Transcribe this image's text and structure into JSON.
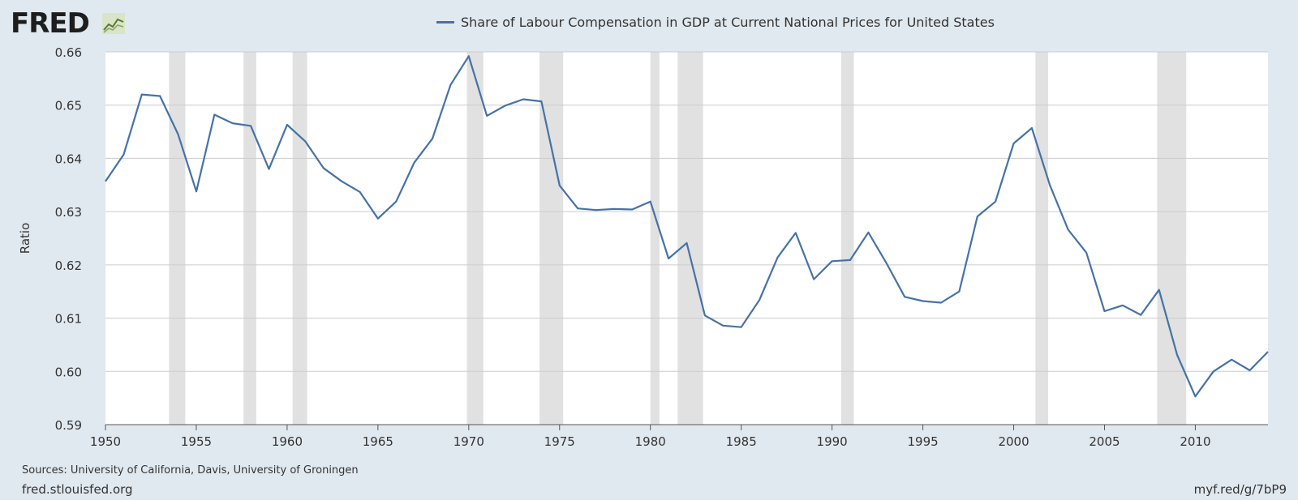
{
  "header": {
    "logo_text": "FRED",
    "series_title": "Share of Labour Compensation in GDP at Current National Prices for United States"
  },
  "colors": {
    "line": "#4572a7",
    "recession": "#e1e1e1",
    "grid": "#cccccc",
    "plot_bg": "#ffffff",
    "page_bg": "#e1e9f0"
  },
  "footer": {
    "sources": "Sources: University of California, Davis, University of Groningen",
    "site": "fred.stlouisfed.org",
    "short_url": "myf.red/g/7bP9"
  },
  "chart_data": {
    "type": "line",
    "title": "Share of Labour Compensation in GDP at Current National Prices for United States",
    "xlabel": "",
    "ylabel": "Ratio",
    "xlim": [
      1950,
      2014
    ],
    "ylim": [
      0.59,
      0.66
    ],
    "x_ticks": [
      1950,
      1955,
      1960,
      1965,
      1970,
      1975,
      1980,
      1985,
      1990,
      1995,
      2000,
      2005,
      2010
    ],
    "y_ticks": [
      "0.59",
      "0.60",
      "0.61",
      "0.62",
      "0.63",
      "0.64",
      "0.65",
      "0.66"
    ],
    "grid": true,
    "legend_position": "top-center",
    "recessions": [
      [
        1953.5,
        1954.4
      ],
      [
        1957.6,
        1958.3
      ],
      [
        1960.3,
        1961.1
      ],
      [
        1969.9,
        1970.8
      ],
      [
        1973.9,
        1975.2
      ],
      [
        1980.0,
        1980.5
      ],
      [
        1981.5,
        1982.9
      ],
      [
        1990.5,
        1991.2
      ],
      [
        2001.2,
        2001.9
      ],
      [
        2007.9,
        2009.5
      ]
    ],
    "series": [
      {
        "name": "Share of Labour Compensation in GDP at Current National Prices for United States",
        "x": [
          1950,
          1951,
          1952,
          1953,
          1954,
          1955,
          1956,
          1957,
          1958,
          1959,
          1960,
          1961,
          1962,
          1963,
          1964,
          1965,
          1966,
          1967,
          1968,
          1969,
          1970,
          1971,
          1972,
          1973,
          1974,
          1975,
          1976,
          1977,
          1978,
          1979,
          1980,
          1981,
          1982,
          1983,
          1984,
          1985,
          1986,
          1987,
          1988,
          1989,
          1990,
          1991,
          1992,
          1993,
          1994,
          1995,
          1996,
          1997,
          1998,
          1999,
          2000,
          2001,
          2002,
          2003,
          2004,
          2005,
          2006,
          2007,
          2008,
          2009,
          2010,
          2011,
          2012,
          2013,
          2014
        ],
        "values": [
          0.6357,
          0.6407,
          0.652,
          0.6517,
          0.6445,
          0.6338,
          0.6482,
          0.6466,
          0.6461,
          0.638,
          0.6463,
          0.6432,
          0.6382,
          0.6357,
          0.6337,
          0.6287,
          0.6319,
          0.6392,
          0.6437,
          0.6538,
          0.6592,
          0.648,
          0.6499,
          0.6511,
          0.6507,
          0.6349,
          0.6306,
          0.6303,
          0.6305,
          0.6304,
          0.6319,
          0.6212,
          0.6241,
          0.6105,
          0.6086,
          0.6083,
          0.6134,
          0.6214,
          0.626,
          0.6173,
          0.6207,
          0.6209,
          0.6261,
          0.6203,
          0.614,
          0.6132,
          0.6129,
          0.615,
          0.6291,
          0.6319,
          0.6428,
          0.6457,
          0.6349,
          0.6266,
          0.6223,
          0.6113,
          0.6124,
          0.6106,
          0.6153,
          0.6031,
          0.5953,
          0.6,
          0.6022,
          0.6002,
          0.6037
        ]
      }
    ]
  }
}
